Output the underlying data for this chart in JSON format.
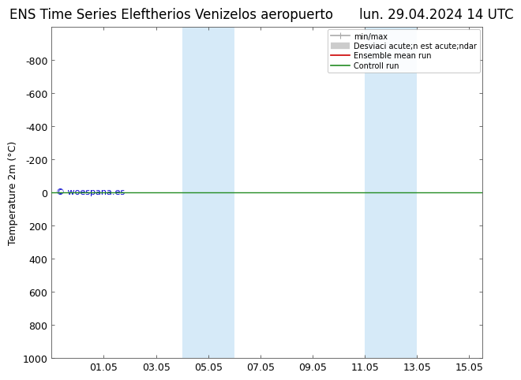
{
  "title_left": "ENS Time Series Eleftherios Venizelos aeropuerto",
  "title_right": "lun. 29.04.2024 14 UTC",
  "ylabel": "Temperature 2m (°C)",
  "watermark": "© woespana.es",
  "x_ticks_labels": [
    "01.05",
    "03.05",
    "05.05",
    "07.05",
    "09.05",
    "11.05",
    "13.05",
    "15.05"
  ],
  "x_ticks_values": [
    2,
    4,
    6,
    8,
    10,
    12,
    14,
    16
  ],
  "xlim": [
    0,
    16.5
  ],
  "ylim": [
    -1000,
    1000
  ],
  "y_ticks": [
    -800,
    -600,
    -400,
    -200,
    0,
    200,
    400,
    600,
    800,
    1000
  ],
  "shaded_bands": [
    [
      5.0,
      6.0
    ],
    [
      6.0,
      7.0
    ],
    [
      12.0,
      13.0
    ],
    [
      13.0,
      14.0
    ]
  ],
  "band_color": "#d6eaf8",
  "horizontal_line_y": 0,
  "line_color_green": "#228B22",
  "line_color_red": "#cc0000",
  "legend_labels": [
    "min/max",
    "Desviaci acute;n est acute;ndar",
    "Ensemble mean run",
    "Controll run"
  ],
  "legend_colors": [
    "#aaaaaa",
    "#cccccc",
    "#cc0000",
    "#228B22"
  ],
  "legend_lws": [
    1.2,
    6,
    1.2,
    1.2
  ],
  "bg_color": "#ffffff",
  "title_fontsize": 12,
  "tick_fontsize": 9,
  "label_fontsize": 9,
  "watermark_color": "#0000cc",
  "watermark_fontsize": 8
}
